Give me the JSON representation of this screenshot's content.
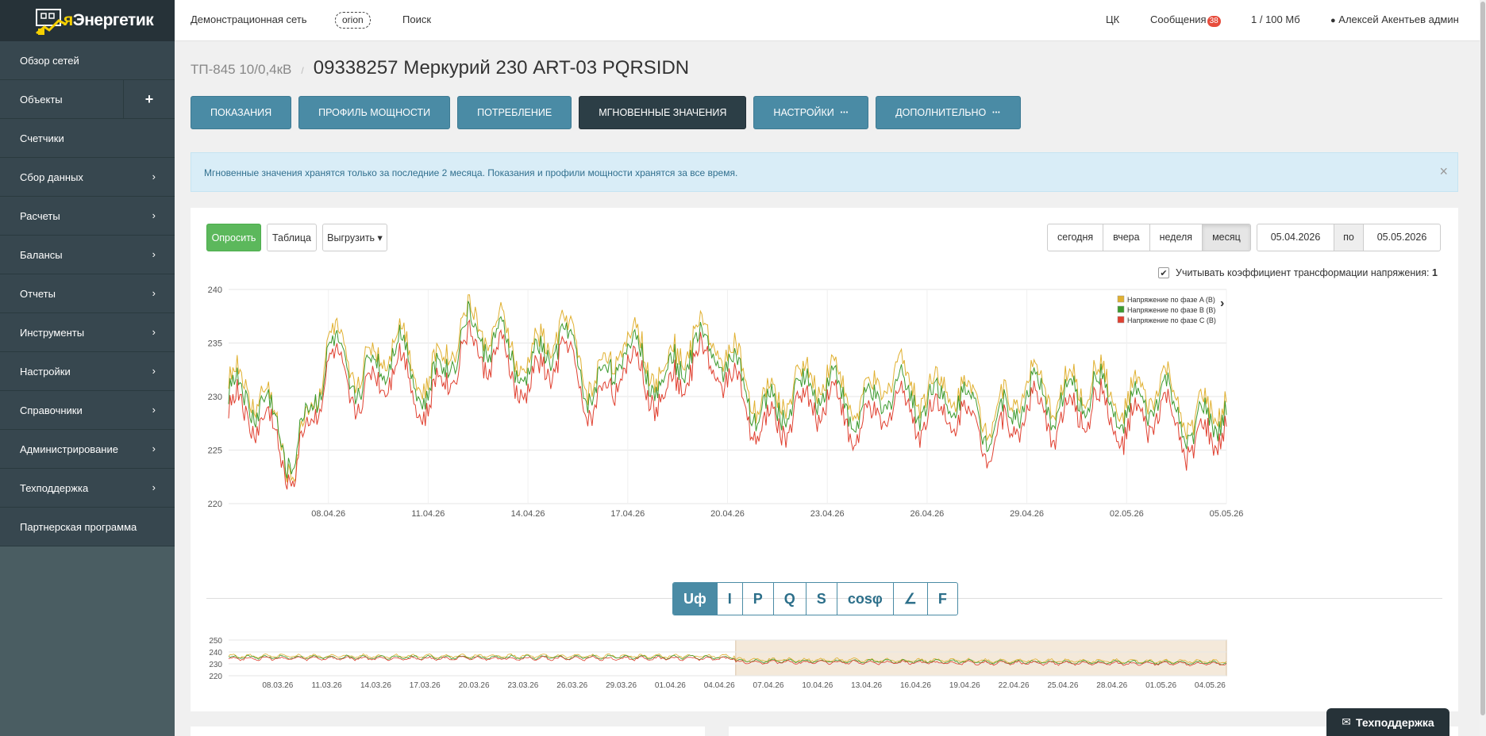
{
  "app": {
    "name": "яЭнергетик",
    "name_prefix": "я",
    "name_rest": "Энергетик"
  },
  "sidebar": {
    "items": [
      {
        "label": "Обзор сетей",
        "chevron": false
      },
      {
        "label": "Объекты",
        "plus": true
      },
      {
        "label": "Счетчики",
        "chevron": false
      },
      {
        "label": "Сбор данных",
        "chevron": true
      },
      {
        "label": "Расчеты",
        "chevron": true
      },
      {
        "label": "Балансы",
        "chevron": true
      },
      {
        "label": "Отчеты",
        "chevron": true
      },
      {
        "label": "Инструменты",
        "chevron": true
      },
      {
        "label": "Настройки",
        "chevron": true
      },
      {
        "label": "Справочники",
        "chevron": true
      },
      {
        "label": "Администрирование",
        "chevron": true
      },
      {
        "label": "Техподдержка",
        "chevron": true
      },
      {
        "label": "Партнерская программа",
        "chevron": false
      }
    ],
    "plus_symbol": "+",
    "chevron_symbol": "›"
  },
  "topbar": {
    "network": "Демонстрационная сеть",
    "network_badge": "orion",
    "search": "Поиск",
    "ck": "ЦК",
    "messages_label": "Сообщения",
    "messages_count": "38",
    "storage": "1 / 100 Мб",
    "user": "Алексей Акентьев админ"
  },
  "breadcrumb": {
    "parent": "ТП-845 10/0,4кВ",
    "sep": "/",
    "title": "09338257 Меркурий 230 ART-03 PQRSIDN"
  },
  "tabs": [
    {
      "label": "Показания"
    },
    {
      "label": "Профиль мощности"
    },
    {
      "label": "Потребление"
    },
    {
      "label": "Мгновенные значения",
      "active": true
    },
    {
      "label": "Настройки",
      "dots": "•••"
    },
    {
      "label": "Дополнительно",
      "dots": "•••"
    }
  ],
  "alert": {
    "text": "Мгновенные значения хранятся только за последние 2 месяца. Показания и профили мощности хранятся за все время.",
    "close": "×"
  },
  "toolbar": {
    "poll": "Опросить",
    "table": "Таблица",
    "export": "Выгрузить ▾"
  },
  "period": {
    "options": [
      "сегодня",
      "вчера",
      "неделя",
      "месяц"
    ],
    "selected": "месяц"
  },
  "dates": {
    "from": "05.04.2026",
    "to_label": "по",
    "to": "05.05.2026"
  },
  "coef": {
    "check": "✔",
    "label": "Учитывать коэффициент трансформации напряжения:",
    "value": "1"
  },
  "measures": {
    "items": [
      "Uф",
      "I",
      "P",
      "Q",
      "S",
      "cosφ",
      "∠",
      "F"
    ],
    "selected": "Uф"
  },
  "support": {
    "label": "Техподдержка"
  },
  "colors": {
    "phaseA": "#e0b030",
    "phaseB": "#3c9a2e",
    "phaseC": "#e04030",
    "accent": "#4a8ba5",
    "sidebar": "#37474f"
  },
  "chart_data": [
    {
      "type": "line",
      "title": "",
      "xlabel": "",
      "ylabel": "",
      "ylim": [
        220,
        240
      ],
      "yticks": [
        220,
        225,
        230,
        235,
        240
      ],
      "xticks": [
        "08.04.26",
        "11.04.26",
        "14.04.26",
        "17.04.26",
        "20.04.26",
        "23.04.26",
        "26.04.26",
        "29.04.26",
        "02.05.26",
        "05.05.26"
      ],
      "x_range": [
        "05.04.26",
        "05.05.26"
      ],
      "legend_position": "top-right",
      "grid": true,
      "x": [
        "05.04",
        "06.04",
        "07.04",
        "08.04",
        "09.04",
        "10.04",
        "11.04",
        "12.04",
        "13.04",
        "14.04",
        "15.04",
        "16.04",
        "17.04",
        "18.04",
        "19.04",
        "20.04",
        "21.04",
        "22.04",
        "23.04",
        "24.04",
        "25.04",
        "26.04",
        "27.04",
        "28.04",
        "29.04",
        "30.04",
        "01.05",
        "02.05",
        "03.05",
        "04.05",
        "05.05"
      ],
      "series": [
        {
          "name": "Напряжение по фазе A (В)",
          "color": "#e0b030",
          "values": [
            231.5,
            230.5,
            223.0,
            235.5,
            232.0,
            236.0,
            231.0,
            237.0,
            236.5,
            233.0,
            237.0,
            231.0,
            236.0,
            232.0,
            236.0,
            234.5,
            229.0,
            231.0,
            232.5,
            229.0,
            232.5,
            230.5,
            231.0,
            228.0,
            231.5,
            230.0,
            232.0,
            229.0,
            231.5,
            227.5,
            230.0
          ]
        },
        {
          "name": "Напряжение по фазе B (В)",
          "color": "#3c9a2e",
          "values": [
            230.5,
            229.5,
            224.0,
            234.5,
            231.0,
            235.0,
            230.0,
            236.0,
            235.5,
            232.0,
            236.0,
            230.0,
            235.0,
            231.0,
            235.0,
            233.5,
            228.0,
            230.0,
            231.5,
            228.0,
            231.0,
            229.5,
            230.0,
            227.0,
            230.5,
            229.0,
            231.0,
            228.0,
            230.5,
            226.5,
            229.0
          ]
        },
        {
          "name": "Напряжение по фазе C (В)",
          "color": "#e04030",
          "values": [
            229.0,
            228.0,
            222.5,
            233.5,
            229.5,
            233.5,
            228.5,
            234.5,
            234.0,
            230.5,
            234.5,
            228.5,
            233.5,
            229.5,
            233.5,
            232.0,
            226.5,
            228.5,
            230.0,
            226.5,
            229.5,
            228.0,
            228.5,
            225.5,
            229.0,
            227.5,
            229.5,
            226.5,
            229.0,
            225.0,
            227.5
          ]
        }
      ]
    },
    {
      "type": "area",
      "title": "",
      "ylim": [
        220,
        250
      ],
      "yticks": [
        220,
        230,
        240,
        250
      ],
      "xticks": [
        "08.03.26",
        "11.03.26",
        "14.03.26",
        "17.03.26",
        "20.03.26",
        "23.03.26",
        "26.03.26",
        "29.03.26",
        "01.04.26",
        "04.04.26",
        "07.04.26",
        "10.04.26",
        "13.04.26",
        "16.04.26",
        "19.04.26",
        "22.04.26",
        "25.04.26",
        "28.04.26",
        "01.05.26",
        "04.05.26"
      ],
      "selected_range": [
        "05.04.26",
        "05.05.26"
      ],
      "x_range": [
        "05.03.26",
        "05.05.26"
      ]
    }
  ]
}
